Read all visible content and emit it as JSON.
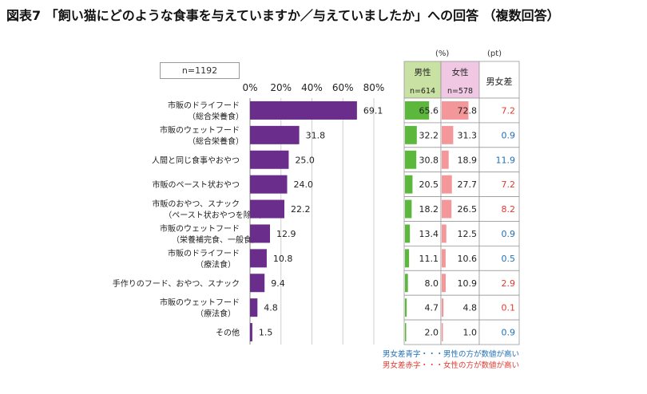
{
  "title": "図表7 「飼い猫にどのような食事を与えていますか／与えていましたか」への回答 （複数回答）",
  "n_label": "n=1192",
  "units": {
    "percent": "(%)",
    "points": "(pt)"
  },
  "table_headers": {
    "male": "男性",
    "male_n": "n=614",
    "female": "女性",
    "female_n": "n=578",
    "diff": "男女差"
  },
  "notes": {
    "blue": "男女差青字・・・男性の方が数値が高い",
    "red": "男女差赤字・・・女性の方が数値が高い"
  },
  "colors": {
    "bar": "#6b2d8c",
    "male_bar": "#5cb83d",
    "female_bar": "#f4979a",
    "male_header": "#c9e2a3",
    "female_header": "#f0c8e4",
    "diff_blue": "#1f6fb5",
    "diff_red": "#e03a2f"
  },
  "chart_data": {
    "type": "bar",
    "orientation": "horizontal",
    "categories": [
      [
        "市販のドライフード",
        "（総合栄養食）"
      ],
      [
        "市販のウェットフード",
        "（総合栄養食）"
      ],
      [
        "人間と同じ食事やおやつ"
      ],
      [
        "市販のペースト状おやつ"
      ],
      [
        "市販のおやつ、スナック",
        "（ペースト状おやつを除く）"
      ],
      [
        "市販のウェットフード",
        "（栄養補完食、一般食）"
      ],
      [
        "市販のドライフード",
        "（療法食）"
      ],
      [
        "手作りのフード、おやつ、スナック"
      ],
      [
        "市販のウェットフード",
        "（療法食）"
      ],
      [
        "その他"
      ]
    ],
    "values": [
      69.1,
      31.8,
      25.0,
      24.0,
      22.2,
      12.9,
      10.8,
      9.4,
      4.8,
      1.5
    ],
    "value_labels": [
      "69.1",
      "31.8",
      "25.0",
      "24.0",
      "22.2",
      "12.9",
      "10.8",
      "9.4",
      "4.8",
      "1.5"
    ],
    "xlim": [
      0,
      80
    ],
    "x_ticks": [
      0,
      20,
      40,
      60,
      80
    ],
    "x_tick_labels": [
      "0%",
      "20%",
      "40%",
      "60%",
      "80%"
    ],
    "grid": true,
    "table": {
      "male": [
        65.6,
        32.2,
        30.8,
        20.5,
        18.2,
        13.4,
        11.1,
        8.0,
        4.7,
        2.0
      ],
      "male_labels": [
        "65.6",
        "32.2",
        "30.8",
        "20.5",
        "18.2",
        "13.4",
        "11.1",
        "8.0",
        "4.7",
        "2.0"
      ],
      "female": [
        72.8,
        31.3,
        18.9,
        27.7,
        26.5,
        12.5,
        10.6,
        10.9,
        4.8,
        1.0
      ],
      "female_labels": [
        "72.8",
        "31.3",
        "18.9",
        "27.7",
        "26.5",
        "12.5",
        "10.6",
        "10.9",
        "4.8",
        "1.0"
      ],
      "diff_labels": [
        "7.2",
        "0.9",
        "11.9",
        "7.2",
        "8.2",
        "0.9",
        "0.5",
        "2.9",
        "0.1",
        "0.9"
      ],
      "diff_higher": [
        "female",
        "male",
        "male",
        "female",
        "female",
        "male",
        "male",
        "female",
        "female",
        "male"
      ]
    }
  }
}
